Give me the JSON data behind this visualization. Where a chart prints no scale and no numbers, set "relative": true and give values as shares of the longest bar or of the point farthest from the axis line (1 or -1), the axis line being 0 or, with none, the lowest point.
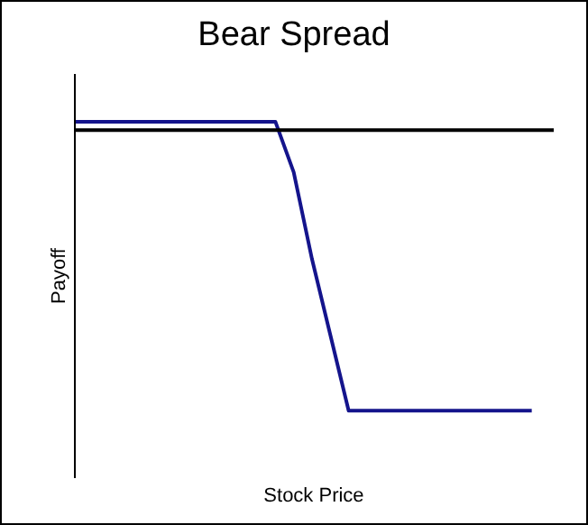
{
  "chart_data": {
    "type": "line",
    "title": "Bear Spread",
    "xlabel": "Stock Price",
    "ylabel": "Payoff",
    "relative": true,
    "categories": [
      null,
      null,
      null,
      null,
      null,
      null,
      null,
      null,
      null,
      null,
      null,
      null,
      null,
      null,
      null,
      null,
      null,
      null,
      null,
      null,
      null,
      null,
      null,
      null,
      null,
      null
    ],
    "series": [
      {
        "color": "#14148c",
        "values": [
          0.03,
          0.03,
          0.03,
          0.03,
          0.03,
          0.03,
          0.03,
          0.03,
          0.03,
          0.03,
          0.03,
          0.03,
          -0.15,
          -0.46,
          -0.73,
          -1,
          -1,
          -1,
          -1,
          -1,
          -1,
          -1,
          -1,
          -1,
          -1,
          -1
        ]
      }
    ]
  }
}
